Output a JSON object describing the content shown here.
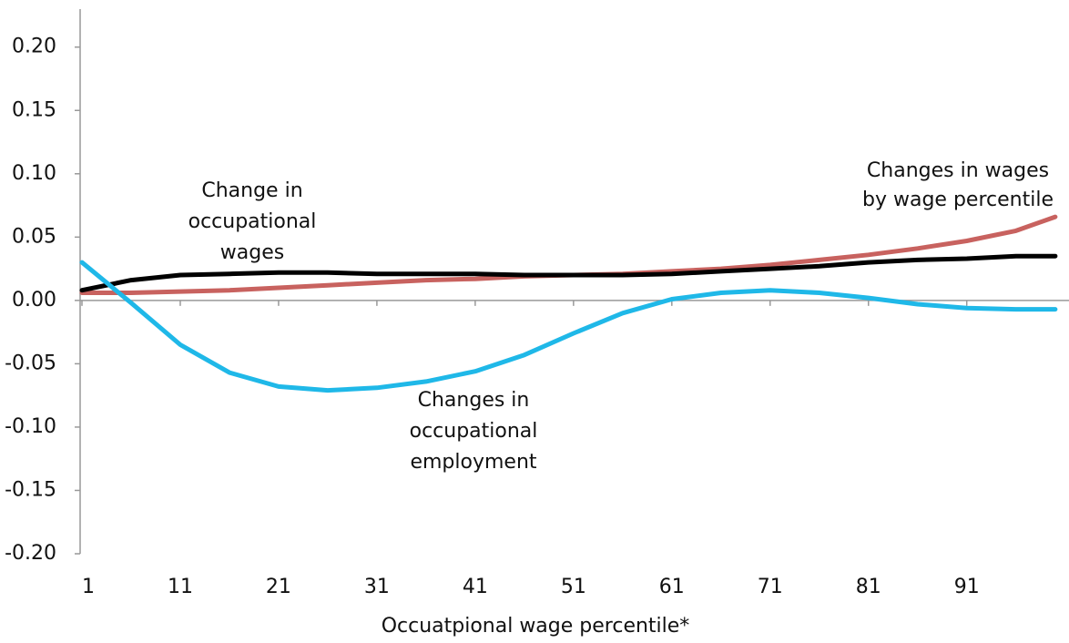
{
  "chart_data": {
    "type": "line",
    "x_label": "Occuatpional wage percentile*",
    "x": [
      1,
      6,
      11,
      16,
      21,
      26,
      31,
      36,
      41,
      46,
      51,
      56,
      61,
      66,
      71,
      76,
      81,
      86,
      91,
      96,
      100
    ],
    "series": [
      {
        "color": "#c8625f",
        "values": [
          0.006,
          0.006,
          0.007,
          0.008,
          0.01,
          0.012,
          0.014,
          0.016,
          0.017,
          0.019,
          0.02,
          0.021,
          0.023,
          0.025,
          0.028,
          0.032,
          0.036,
          0.041,
          0.047,
          0.055,
          0.066
        ]
      },
      {
        "color": "#000000",
        "values": [
          0.008,
          0.016,
          0.02,
          0.021,
          0.022,
          0.022,
          0.021,
          0.021,
          0.021,
          0.02,
          0.02,
          0.02,
          0.021,
          0.023,
          0.025,
          0.027,
          0.03,
          0.032,
          0.033,
          0.035,
          0.035
        ]
      },
      {
        "color": "#1fb8e8",
        "values": [
          0.03,
          -0.002,
          -0.035,
          -0.057,
          -0.068,
          -0.071,
          -0.069,
          -0.064,
          -0.056,
          -0.043,
          -0.026,
          -0.01,
          0.001,
          0.006,
          0.008,
          0.006,
          0.002,
          -0.003,
          -0.006,
          -0.007,
          -0.007
        ]
      }
    ],
    "annotations": [
      {
        "lines": [
          "Change in",
          "occupational",
          "wages"
        ]
      },
      {
        "lines": [
          "Changes in wages",
          "by wage percentile"
        ]
      },
      {
        "lines": [
          "Changes in",
          "occupational",
          "employment"
        ]
      }
    ],
    "xlim": [
      1,
      101.4
    ],
    "xticks": [
      1,
      11,
      21,
      31,
      41,
      51,
      61,
      71,
      81,
      91
    ],
    "ylim": [
      -0.2,
      0.23
    ],
    "yticks": [
      {
        "value": 0.2,
        "label": "0.20"
      },
      {
        "value": 0.15,
        "label": "0.15"
      },
      {
        "value": 0.1,
        "label": "0.10"
      },
      0.05,
      {
        "value": 0,
        "label": "0.00"
      },
      -0.05,
      {
        "value": -0.1,
        "label": "-0.10"
      },
      -0.15,
      {
        "value": -0.2,
        "label": "-0.20"
      }
    ]
  }
}
